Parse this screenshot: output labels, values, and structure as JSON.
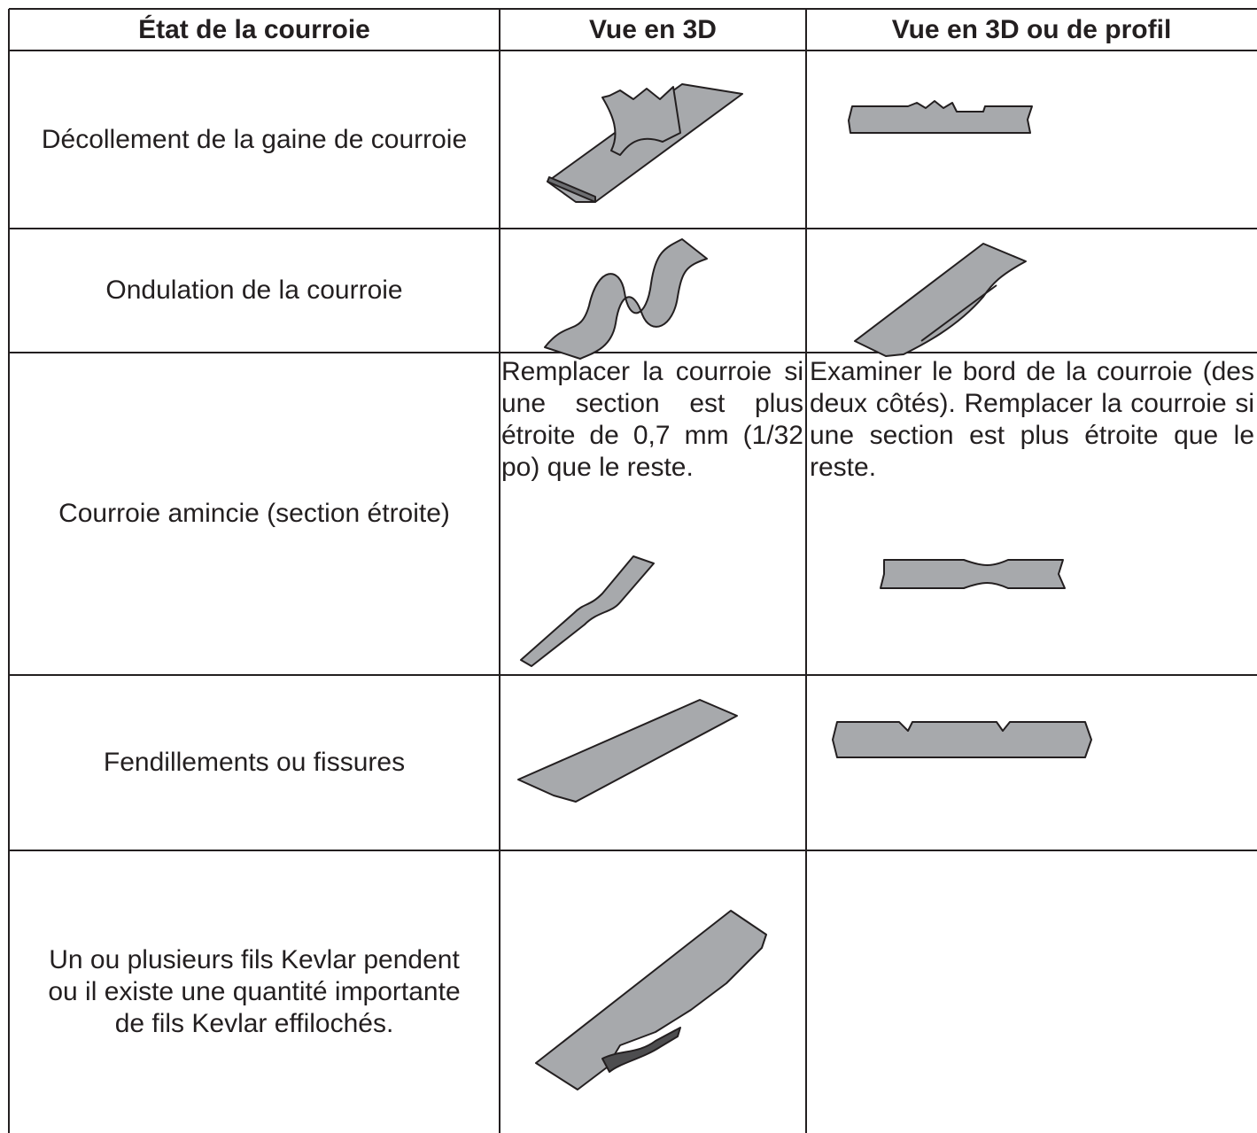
{
  "table": {
    "header": [
      "État de la courroie",
      "Vue en 3D",
      "Vue en 3D ou de profil"
    ],
    "rows": [
      {
        "condition": "Décollement de la gaine de courroie"
      },
      {
        "condition": "Ondulation de la courroie"
      },
      {
        "condition": "Courroie amincie (section étroite)",
        "note_3d": "Remplacer la courroie si une section est plus étroite de 0,7 mm (1/32 po) que le reste.",
        "note_profile": "Examiner le bord de la courroie (des deux côtés). Remplacer la courroie si une section est plus étroite que le reste."
      },
      {
        "condition": "Fendillements ou fissures"
      },
      {
        "condition": "Un ou plusieurs fils Kevlar pendent ou il existe une quantité importante de fils Kevlar effilochés."
      }
    ]
  }
}
